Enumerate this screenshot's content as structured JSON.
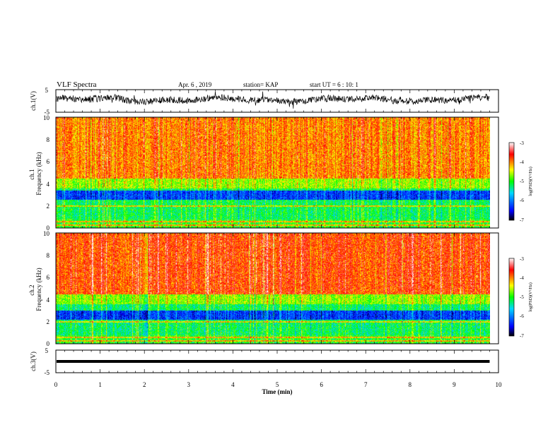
{
  "header": {
    "title": "VLF Spectra",
    "date": "Apr. 6 , 2019",
    "station": "station= KAP",
    "start": "start UT = 6 : 10: 1"
  },
  "chart_data": [
    {
      "type": "line",
      "name": "ch1-waveform",
      "ylabel": "ch.1(V)",
      "ylim": [
        -5,
        5
      ],
      "yticks": [
        "5",
        "-5"
      ],
      "xlim": [
        0,
        10
      ],
      "signal": "noisy waveform centered slightly above 0 V, amplitude about ±2 V, ends near 9.8 min"
    },
    {
      "type": "heatmap",
      "name": "ch1-spectrogram",
      "ylabel": "ch.1 Frequency (kHz)",
      "ylim": [
        0,
        10
      ],
      "yticks": [
        "0",
        "2",
        "4",
        "6",
        "8",
        "10"
      ],
      "xlim": [
        0,
        10
      ],
      "data_end_min": 9.8,
      "colorbar": {
        "label": "log(PSD)(V²/Hz)",
        "range": [
          -7,
          -3
        ],
        "ticks": [
          "-3",
          "-4",
          "-5",
          "-6",
          "-7"
        ],
        "colors": [
          "#000000",
          "#0000ff",
          "#00d8ff",
          "#00ff00",
          "#ffff00",
          "#ff0000",
          "#ffffff"
        ]
      },
      "profile": "red/yellow (-3.5 to -4) above 4 kHz, green/cyan 0.5-4 kHz, dark blue band near 3 kHz, horizontal lines near 0.3-0.8 kHz"
    },
    {
      "type": "heatmap",
      "name": "ch2-spectrogram",
      "ylabel": "ch.2 Frequency (kHz)",
      "ylim": [
        0,
        10
      ],
      "yticks": [
        "0",
        "2",
        "4",
        "6",
        "8",
        "10"
      ],
      "xlim": [
        0,
        10
      ],
      "data_end_min": 9.8,
      "colorbar": {
        "label": "log(PSD)(V²/Hz)",
        "range": [
          -7,
          -3
        ],
        "ticks": [
          "-3",
          "-4",
          "-5",
          "-6",
          "-7"
        ],
        "colors": [
          "#000000",
          "#0000ff",
          "#00d8ff",
          "#00ff00",
          "#ffff00",
          "#ff0000",
          "#ffffff"
        ]
      },
      "profile": "red dominant above 4 kHz, green/cyan 0.5-4 kHz, dark blue band 2.5-3 kHz"
    },
    {
      "type": "line",
      "name": "ch3-waveform",
      "ylabel": "ch.3(V)",
      "ylim": [
        -5,
        5
      ],
      "yticks": [
        "5",
        "-5"
      ],
      "xlim": [
        0,
        10
      ],
      "xlabel": "Time (min)",
      "xticks": [
        "0",
        "1",
        "2",
        "3",
        "4",
        "5",
        "6",
        "7",
        "8",
        "9",
        "10"
      ],
      "signal": "flat line at about 0 V from 0 to 9.8 min"
    }
  ]
}
